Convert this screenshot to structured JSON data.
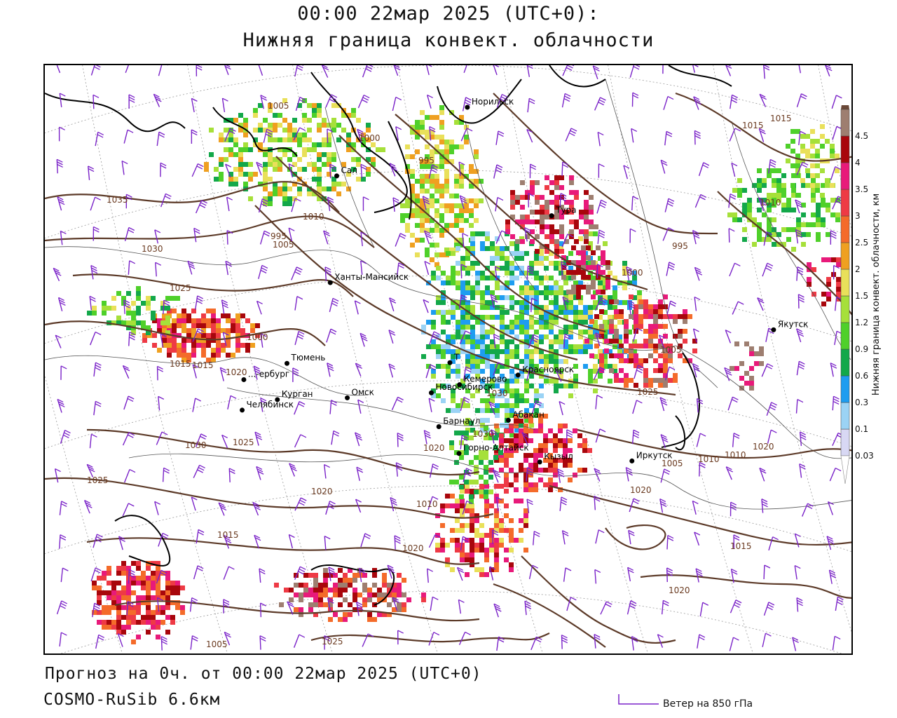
{
  "title": {
    "line1": "00:00 22мар 2025 (UTC+0):",
    "line2": "Нижняя граница конвект. облачности"
  },
  "cities": [
    {
      "name": "Норильск",
      "lat": 69.3,
      "lon": 88.2
    },
    {
      "name": "Якутск",
      "lat": 62.0,
      "lon": 129.7
    },
    {
      "name": "Тура",
      "lat": 64.3,
      "lon": 100.2
    },
    {
      "name": "Салехард",
      "label": "Сал",
      "lat": 66.5,
      "lon": 66.6
    },
    {
      "name": "Ханты-Мансийск",
      "lat": 61.0,
      "lon": 69.0
    },
    {
      "name": "Екатеринбург",
      "label": "...-ербург",
      "lat": 56.8,
      "lon": 60.6
    },
    {
      "name": "Тюмень",
      "lat": 57.2,
      "lon": 65.5
    },
    {
      "name": "Челябинск",
      "lat": 55.2,
      "lon": 61.4
    },
    {
      "name": "Курган",
      "lat": 55.4,
      "lon": 65.3
    },
    {
      "name": "Омск",
      "label": "Омск",
      "lat": 55.0,
      "lon": 73.4
    },
    {
      "name": "Новосибирск",
      "lat": 55.0,
      "lon": 82.9
    },
    {
      "name": "Томск",
      "label": "Т",
      "lat": 56.5,
      "lon": 85.0
    },
    {
      "name": "Кемерово",
      "lat": 55.4,
      "lon": 86.1
    },
    {
      "name": "Красноярск",
      "lat": 56.0,
      "lon": 92.9
    },
    {
      "name": "Барнаул",
      "lat": 53.3,
      "lon": 83.8
    },
    {
      "name": "Абакан",
      "lat": 53.7,
      "lon": 91.4
    },
    {
      "name": "Горно-Алтайск",
      "lat": 51.96,
      "lon": 85.96
    },
    {
      "name": "Кызыл",
      "lat": 51.7,
      "lon": 94.4
    },
    {
      "name": "Иркутск",
      "lat": 52.3,
      "lon": 104.3
    }
  ],
  "isobars": [
    "1005",
    "1000",
    "995",
    "1035",
    "1030",
    "1025",
    "1020",
    "1015",
    "1010",
    "1005",
    "1000",
    "995",
    "1015",
    "1025",
    "1030",
    "1025",
    "1020",
    "1015",
    "1010",
    "1005",
    "1020",
    "1025",
    "1030",
    "1020",
    "1020",
    "1020",
    "1025",
    "1030",
    "1020",
    "1015",
    "1010",
    "1015",
    "1010",
    "1005",
    "1000",
    "995",
    "1000",
    "1015",
    "1005",
    "1010"
  ],
  "legend": {
    "title": "Нижняя граница конвект. облачности, км",
    "levels": [
      {
        "label": "0.03",
        "color": "#d8d8f4"
      },
      {
        "label": "0.1",
        "color": "#9bd3f5"
      },
      {
        "label": "0.3",
        "color": "#1e9df0"
      },
      {
        "label": "0.6",
        "color": "#13a84a"
      },
      {
        "label": "0.9",
        "color": "#4fd02a"
      },
      {
        "label": "1.2",
        "color": "#a6e03a"
      },
      {
        "label": "1.5",
        "color": "#e9e05a"
      },
      {
        "label": "2",
        "color": "#efa020"
      },
      {
        "label": "2.5",
        "color": "#f46b2a"
      },
      {
        "label": "3",
        "color": "#ee3a45"
      },
      {
        "label": "3.5",
        "color": "#e81a7a"
      },
      {
        "label": "4",
        "color": "#a8060c"
      },
      {
        "label": "4.5",
        "color": "#9e7e70"
      }
    ],
    "top_color": "#6a4838"
  },
  "footer": {
    "forecast": "Прогноз на 0ч. от 00:00 22мар 2025 (UTC+0)",
    "model": "COSMO-RuSib 6.6км",
    "wind_legend": "Ветер на 850 гПа"
  },
  "colors": {
    "isobar": "#5c3a28",
    "wind_barb": "#7a22c8",
    "border": "#000000"
  }
}
